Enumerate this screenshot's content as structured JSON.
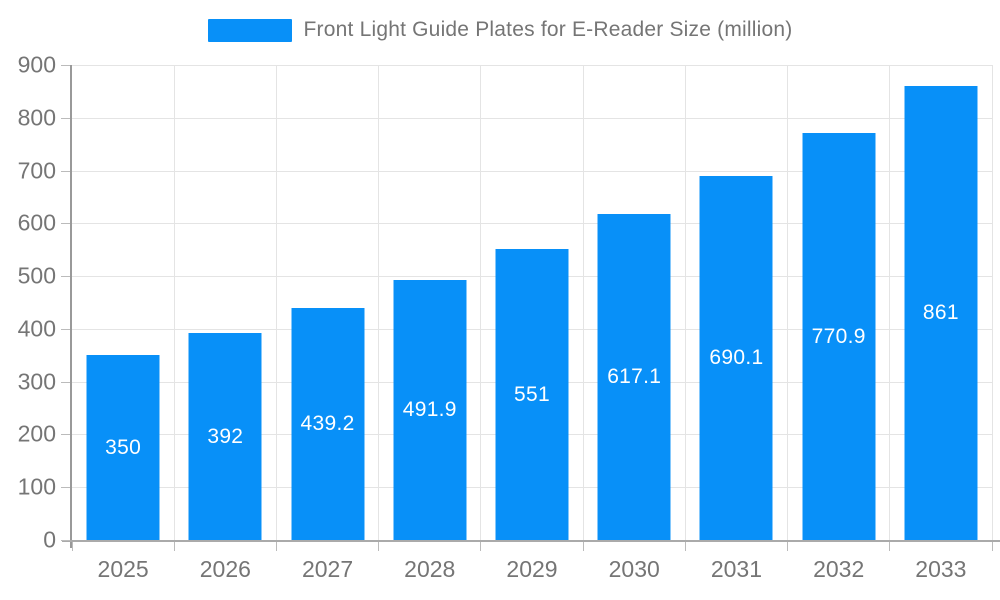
{
  "legend": {
    "label": "Front Light Guide Plates for E-Reader Size (million)"
  },
  "chart_data": {
    "type": "bar",
    "title": "Front Light Guide Plates for E-Reader Size (million)",
    "categories": [
      "2025",
      "2026",
      "2027",
      "2028",
      "2029",
      "2030",
      "2031",
      "2032",
      "2033"
    ],
    "values": [
      350,
      392,
      439.2,
      491.9,
      551,
      617.1,
      690.1,
      770.9,
      861
    ],
    "value_labels": [
      "350",
      "392",
      "439.2",
      "491.9",
      "551",
      "617.1",
      "690.1",
      "770.9",
      "861"
    ],
    "xlabel": "",
    "ylabel": "",
    "ylim": [
      0,
      900
    ],
    "ytick_step": 100,
    "grid": true,
    "legend_position": "top",
    "colors": {
      "bar": "#0890f8",
      "grid": "#e4e4e4",
      "axis": "#9c9c9c",
      "tick": "#bbbbbb",
      "axis_text": "#757575",
      "bar_label_text": "#ffffff",
      "background": "#ffffff"
    }
  }
}
